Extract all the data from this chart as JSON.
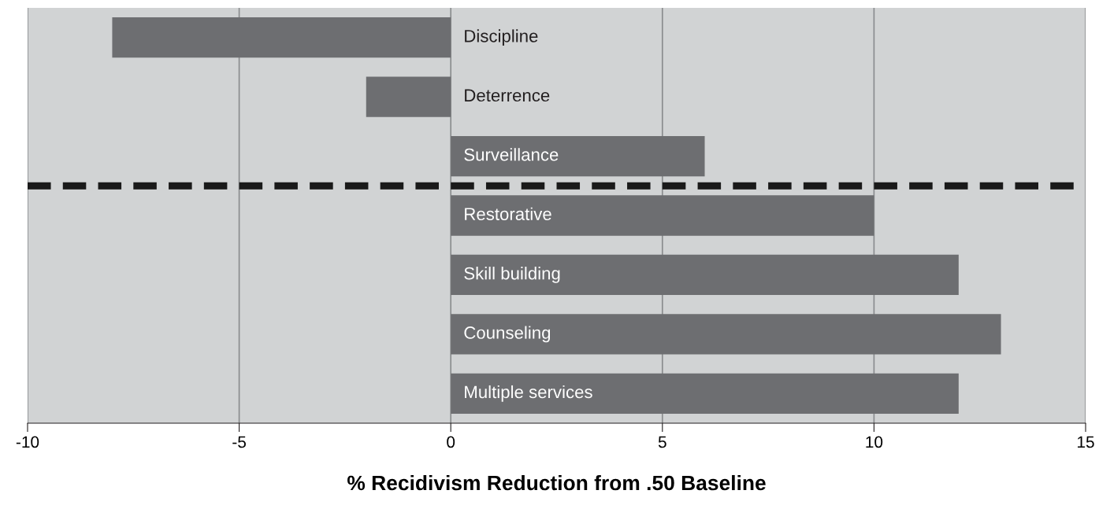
{
  "chart_data": {
    "type": "bar",
    "orientation": "horizontal",
    "categories": [
      "Discipline",
      "Deterrence",
      "Surveillance",
      "Restorative",
      "Skill building",
      "Counseling",
      "Multiple services"
    ],
    "values": [
      -8,
      -2,
      6,
      10,
      12,
      13,
      12
    ],
    "color": "#6d6e71",
    "xlabel": "% Recidivism Reduction from .50 Baseline",
    "xlim": [
      -10,
      15
    ],
    "xticks": [
      -10,
      -5,
      0,
      5,
      10,
      15
    ],
    "grid": "x",
    "tick_labels": "x"
  }
}
